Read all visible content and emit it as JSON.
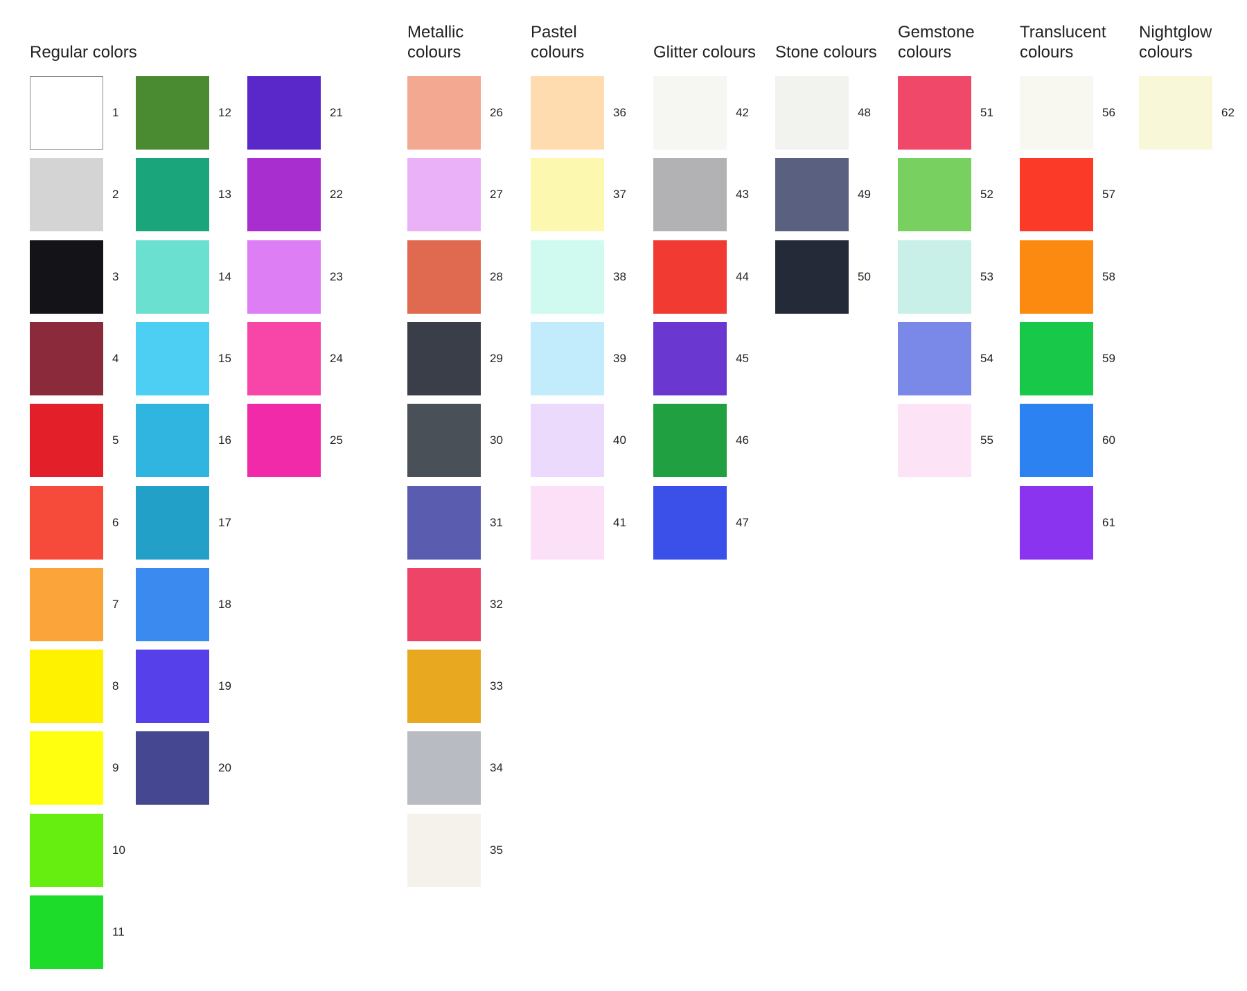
{
  "groups": [
    {
      "title": "Regular colors",
      "columns": [
        [
          {
            "label": 1,
            "color": "#ffffff"
          },
          {
            "label": 2,
            "color": "#d4d4d4"
          },
          {
            "label": 3,
            "color": "#141418"
          },
          {
            "label": 4,
            "color": "#8a2a3a"
          },
          {
            "label": 5,
            "color": "#e3202a"
          },
          {
            "label": 6,
            "color": "#f64a3a"
          },
          {
            "label": 7,
            "color": "#fba43a"
          },
          {
            "label": 8,
            "color": "#fff200"
          },
          {
            "label": 9,
            "color": "#ffff10"
          },
          {
            "label": 10,
            "color": "#66ee10"
          },
          {
            "label": 11,
            "color": "#1ddc2a"
          }
        ],
        [
          {
            "label": 12,
            "color": "#4a8a30"
          },
          {
            "label": 13,
            "color": "#1aa67a"
          },
          {
            "label": 14,
            "color": "#6ae0d0"
          },
          {
            "label": 15,
            "color": "#4ccff2"
          },
          {
            "label": 16,
            "color": "#30b4e0"
          },
          {
            "label": 17,
            "color": "#23a0c8"
          },
          {
            "label": 18,
            "color": "#3a8af0"
          },
          {
            "label": 19,
            "color": "#5640ea"
          },
          {
            "label": 20,
            "color": "#454890"
          }
        ],
        [
          {
            "label": 21,
            "color": "#5a28c8"
          },
          {
            "label": 22,
            "color": "#a82ed0"
          },
          {
            "label": 23,
            "color": "#de7ef5"
          },
          {
            "label": 24,
            "color": "#f846a8"
          },
          {
            "label": 25,
            "color": "#f02aa8"
          }
        ]
      ]
    },
    {
      "title": "Metallic colours",
      "columns": [
        [
          {
            "label": 26,
            "color": "#f3a892"
          },
          {
            "label": 27,
            "color": "#eab0f8"
          },
          {
            "label": 28,
            "color": "#e06a50"
          },
          {
            "label": 29,
            "color": "#3a3e48"
          },
          {
            "label": 30,
            "color": "#4a5058"
          },
          {
            "label": 31,
            "color": "#5a5cb0"
          },
          {
            "label": 32,
            "color": "#ee4468"
          },
          {
            "label": 33,
            "color": "#e8a820"
          },
          {
            "label": 34,
            "color": "#b8bcc2"
          },
          {
            "label": 35,
            "color": "#f4f2ea"
          }
        ]
      ]
    },
    {
      "title": "Pastel colours",
      "columns": [
        [
          {
            "label": 36,
            "color": "#ffdcb0"
          },
          {
            "label": 37,
            "color": "#fcf8b0"
          },
          {
            "label": 38,
            "color": "#d0faf0"
          },
          {
            "label": 39,
            "color": "#c2ecfc"
          },
          {
            "label": 40,
            "color": "#ecdafc"
          },
          {
            "label": 41,
            "color": "#fce0f8"
          }
        ]
      ]
    },
    {
      "title": "Glitter colours",
      "columns": [
        [
          {
            "label": 42,
            "color": "#f6f6f2"
          },
          {
            "label": 43,
            "color": "#b2b2b4"
          },
          {
            "label": 44,
            "color": "#f03a32"
          },
          {
            "label": 45,
            "color": "#6a38d0"
          },
          {
            "label": 46,
            "color": "#20a040"
          },
          {
            "label": 47,
            "color": "#3a50e8"
          }
        ]
      ]
    },
    {
      "title": "Stone colours",
      "columns": [
        [
          {
            "label": 48,
            "color": "#f2f2ee"
          },
          {
            "label": 49,
            "color": "#5a6080"
          },
          {
            "label": 50,
            "color": "#242a38"
          }
        ]
      ]
    },
    {
      "title": "Gemstone colours",
      "columns": [
        [
          {
            "label": 51,
            "color": "#f04868"
          },
          {
            "label": 52,
            "color": "#78d060"
          },
          {
            "label": 53,
            "color": "#c8f0e8"
          },
          {
            "label": 54,
            "color": "#7a88e8"
          },
          {
            "label": 55,
            "color": "#fce4f6"
          }
        ]
      ]
    },
    {
      "title": "Translucent colours",
      "columns": [
        [
          {
            "label": 56,
            "color": "#f8f8f0"
          },
          {
            "label": 57,
            "color": "#fc3a28"
          },
          {
            "label": 58,
            "color": "#fc8a10"
          },
          {
            "label": 59,
            "color": "#18c848"
          },
          {
            "label": 60,
            "color": "#2c82f0"
          },
          {
            "label": 61,
            "color": "#8a34f0"
          }
        ]
      ]
    },
    {
      "title": "Nightglow colours",
      "columns": [
        [
          {
            "label": 62,
            "color": "#f8f8d8"
          }
        ]
      ]
    }
  ]
}
